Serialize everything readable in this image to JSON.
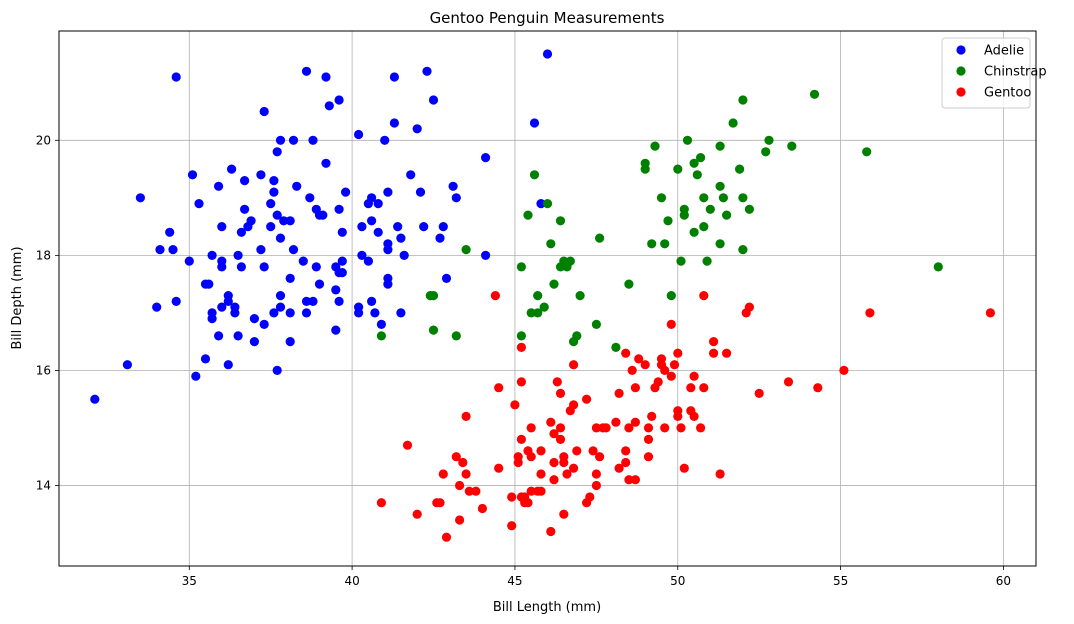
{
  "chart_data": {
    "type": "scatter",
    "title": "Gentoo Penguin Measurements",
    "xlabel": "Bill Length (mm)",
    "ylabel": "Bill Depth (mm)",
    "xlim": [
      31.0,
      61.0
    ],
    "ylim": [
      12.6,
      21.9
    ],
    "xticks": [
      35,
      40,
      45,
      50,
      55,
      60
    ],
    "yticks": [
      14,
      16,
      18,
      20
    ],
    "grid": true,
    "legend_position": "top-right",
    "series": [
      {
        "name": "Adelie",
        "color": "#0000ff",
        "points": [
          [
            32.1,
            15.5
          ],
          [
            33.1,
            16.1
          ],
          [
            33.5,
            19.0
          ],
          [
            34.0,
            17.1
          ],
          [
            34.1,
            18.1
          ],
          [
            34.4,
            18.4
          ],
          [
            34.5,
            18.1
          ],
          [
            34.6,
            21.1
          ],
          [
            34.6,
            17.2
          ],
          [
            35.0,
            17.9
          ],
          [
            35.1,
            19.4
          ],
          [
            35.2,
            15.9
          ],
          [
            35.3,
            18.9
          ],
          [
            35.5,
            16.2
          ],
          [
            35.5,
            17.5
          ],
          [
            35.6,
            17.5
          ],
          [
            35.7,
            16.9
          ],
          [
            35.7,
            17.0
          ],
          [
            35.7,
            18.0
          ],
          [
            35.9,
            19.2
          ],
          [
            35.9,
            16.6
          ],
          [
            36.0,
            17.1
          ],
          [
            36.0,
            17.8
          ],
          [
            36.0,
            18.5
          ],
          [
            36.0,
            17.9
          ],
          [
            36.2,
            16.1
          ],
          [
            36.2,
            17.2
          ],
          [
            36.2,
            17.3
          ],
          [
            36.3,
            19.5
          ],
          [
            36.4,
            17.0
          ],
          [
            36.4,
            17.1
          ],
          [
            36.5,
            16.6
          ],
          [
            36.5,
            18.0
          ],
          [
            36.6,
            17.8
          ],
          [
            36.6,
            18.4
          ],
          [
            36.7,
            19.3
          ],
          [
            36.7,
            18.8
          ],
          [
            36.8,
            18.5
          ],
          [
            36.9,
            18.6
          ],
          [
            37.0,
            16.9
          ],
          [
            37.0,
            16.5
          ],
          [
            37.2,
            18.1
          ],
          [
            37.2,
            19.4
          ],
          [
            37.3,
            20.5
          ],
          [
            37.3,
            17.8
          ],
          [
            37.3,
            16.8
          ],
          [
            37.5,
            18.9
          ],
          [
            37.5,
            18.5
          ],
          [
            37.6,
            19.1
          ],
          [
            37.6,
            17.0
          ],
          [
            37.6,
            19.3
          ],
          [
            37.7,
            18.7
          ],
          [
            37.7,
            16.0
          ],
          [
            37.7,
            19.8
          ],
          [
            37.8,
            18.3
          ],
          [
            37.8,
            17.1
          ],
          [
            37.8,
            17.3
          ],
          [
            37.8,
            20.0
          ],
          [
            37.9,
            18.6
          ],
          [
            38.1,
            18.6
          ],
          [
            38.1,
            17.6
          ],
          [
            38.1,
            16.5
          ],
          [
            38.1,
            17.0
          ],
          [
            38.2,
            20.0
          ],
          [
            38.2,
            18.1
          ],
          [
            38.3,
            19.2
          ],
          [
            38.5,
            17.9
          ],
          [
            38.6,
            21.2
          ],
          [
            38.6,
            17.2
          ],
          [
            38.6,
            17.0
          ],
          [
            38.7,
            19.0
          ],
          [
            38.8,
            17.2
          ],
          [
            38.8,
            20.0
          ],
          [
            38.9,
            18.8
          ],
          [
            38.9,
            17.8
          ],
          [
            39.0,
            18.7
          ],
          [
            39.0,
            17.5
          ],
          [
            39.1,
            18.7
          ],
          [
            39.2,
            19.6
          ],
          [
            39.2,
            21.1
          ],
          [
            39.3,
            20.6
          ],
          [
            39.5,
            16.7
          ],
          [
            39.5,
            17.4
          ],
          [
            39.5,
            17.8
          ],
          [
            39.6,
            17.7
          ],
          [
            39.6,
            20.7
          ],
          [
            39.6,
            18.8
          ],
          [
            39.6,
            17.2
          ],
          [
            39.7,
            18.4
          ],
          [
            39.7,
            17.9
          ],
          [
            39.7,
            17.7
          ],
          [
            39.8,
            19.1
          ],
          [
            40.2,
            17.0
          ],
          [
            40.2,
            17.1
          ],
          [
            40.2,
            20.1
          ],
          [
            40.3,
            18.0
          ],
          [
            40.3,
            18.5
          ],
          [
            40.5,
            17.9
          ],
          [
            40.5,
            18.9
          ],
          [
            40.6,
            17.2
          ],
          [
            40.6,
            18.6
          ],
          [
            40.6,
            19.0
          ],
          [
            40.7,
            17.0
          ],
          [
            40.8,
            18.4
          ],
          [
            40.8,
            18.9
          ],
          [
            40.9,
            16.8
          ],
          [
            41.0,
            20.0
          ],
          [
            41.1,
            17.6
          ],
          [
            41.1,
            17.5
          ],
          [
            41.1,
            18.2
          ],
          [
            41.1,
            18.1
          ],
          [
            41.1,
            19.1
          ],
          [
            41.3,
            20.3
          ],
          [
            41.3,
            21.1
          ],
          [
            41.4,
            18.5
          ],
          [
            41.5,
            18.3
          ],
          [
            41.5,
            17.0
          ],
          [
            41.6,
            18.0
          ],
          [
            41.8,
            19.4
          ],
          [
            42.0,
            20.2
          ],
          [
            42.1,
            19.1
          ],
          [
            42.2,
            18.5
          ],
          [
            42.3,
            21.2
          ],
          [
            42.5,
            20.7
          ],
          [
            42.7,
            18.3
          ],
          [
            42.8,
            18.5
          ],
          [
            42.9,
            17.6
          ],
          [
            43.1,
            19.2
          ],
          [
            43.2,
            19.0
          ],
          [
            44.1,
            19.7
          ],
          [
            44.1,
            18.0
          ],
          [
            45.6,
            20.3
          ],
          [
            45.8,
            18.9
          ],
          [
            46.0,
            21.5
          ]
        ]
      },
      {
        "name": "Chinstrap",
        "color": "#008000",
        "points": [
          [
            40.9,
            16.6
          ],
          [
            42.4,
            17.3
          ],
          [
            42.5,
            16.7
          ],
          [
            42.5,
            17.3
          ],
          [
            43.2,
            16.6
          ],
          [
            43.5,
            18.1
          ],
          [
            45.2,
            17.8
          ],
          [
            45.2,
            16.6
          ],
          [
            45.4,
            18.7
          ],
          [
            45.5,
            17.0
          ],
          [
            45.6,
            19.4
          ],
          [
            45.7,
            17.3
          ],
          [
            45.7,
            17.0
          ],
          [
            45.9,
            17.1
          ],
          [
            46.0,
            18.9
          ],
          [
            46.1,
            18.2
          ],
          [
            46.2,
            17.5
          ],
          [
            46.4,
            18.6
          ],
          [
            46.4,
            17.8
          ],
          [
            46.5,
            17.9
          ],
          [
            46.6,
            17.8
          ],
          [
            46.7,
            17.9
          ],
          [
            46.8,
            16.5
          ],
          [
            46.9,
            16.6
          ],
          [
            47.0,
            17.3
          ],
          [
            47.5,
            16.8
          ],
          [
            47.6,
            18.3
          ],
          [
            48.1,
            16.4
          ],
          [
            48.5,
            17.5
          ],
          [
            49.0,
            19.5
          ],
          [
            49.0,
            19.6
          ],
          [
            49.2,
            18.2
          ],
          [
            49.3,
            19.9
          ],
          [
            49.5,
            19.0
          ],
          [
            49.6,
            18.2
          ],
          [
            49.7,
            18.6
          ],
          [
            49.8,
            17.3
          ],
          [
            50.0,
            19.5
          ],
          [
            50.1,
            17.9
          ],
          [
            50.2,
            18.8
          ],
          [
            50.2,
            18.7
          ],
          [
            50.3,
            20.0
          ],
          [
            50.5,
            18.4
          ],
          [
            50.5,
            19.6
          ],
          [
            50.6,
            19.4
          ],
          [
            50.7,
            19.7
          ],
          [
            50.8,
            18.5
          ],
          [
            50.8,
            19.0
          ],
          [
            50.9,
            17.9
          ],
          [
            51.0,
            18.8
          ],
          [
            51.3,
            19.2
          ],
          [
            51.3,
            18.2
          ],
          [
            51.3,
            19.9
          ],
          [
            51.4,
            19.0
          ],
          [
            51.5,
            18.7
          ],
          [
            51.7,
            20.3
          ],
          [
            51.9,
            19.5
          ],
          [
            52.0,
            18.1
          ],
          [
            52.0,
            20.7
          ],
          [
            52.0,
            19.0
          ],
          [
            52.2,
            18.8
          ],
          [
            52.7,
            19.8
          ],
          [
            52.8,
            20.0
          ],
          [
            53.5,
            19.9
          ],
          [
            54.2,
            20.8
          ],
          [
            55.8,
            19.8
          ],
          [
            58.0,
            17.8
          ]
        ]
      },
      {
        "name": "Gentoo",
        "color": "#ff0000",
        "points": [
          [
            40.9,
            13.7
          ],
          [
            41.7,
            14.7
          ],
          [
            42.0,
            13.5
          ],
          [
            42.6,
            13.7
          ],
          [
            42.7,
            13.7
          ],
          [
            42.8,
            14.2
          ],
          [
            42.9,
            13.1
          ],
          [
            43.2,
            14.5
          ],
          [
            43.3,
            14.0
          ],
          [
            43.3,
            13.4
          ],
          [
            43.4,
            14.4
          ],
          [
            43.5,
            14.2
          ],
          [
            43.5,
            15.2
          ],
          [
            43.6,
            13.9
          ],
          [
            43.8,
            13.9
          ],
          [
            44.0,
            13.6
          ],
          [
            44.4,
            17.3
          ],
          [
            44.5,
            14.3
          ],
          [
            44.5,
            15.7
          ],
          [
            44.9,
            13.3
          ],
          [
            44.9,
            13.8
          ],
          [
            45.0,
            15.4
          ],
          [
            45.1,
            14.5
          ],
          [
            45.1,
            14.4
          ],
          [
            45.2,
            16.4
          ],
          [
            45.2,
            15.8
          ],
          [
            45.2,
            13.8
          ],
          [
            45.2,
            14.8
          ],
          [
            45.3,
            13.7
          ],
          [
            45.3,
            13.8
          ],
          [
            45.4,
            14.6
          ],
          [
            45.4,
            13.7
          ],
          [
            45.5,
            13.9
          ],
          [
            45.5,
            14.5
          ],
          [
            45.5,
            15.0
          ],
          [
            45.7,
            13.9
          ],
          [
            45.8,
            14.2
          ],
          [
            45.8,
            13.9
          ],
          [
            45.8,
            14.6
          ],
          [
            46.1,
            13.2
          ],
          [
            46.1,
            15.1
          ],
          [
            46.2,
            14.4
          ],
          [
            46.2,
            14.1
          ],
          [
            46.2,
            14.9
          ],
          [
            46.3,
            15.8
          ],
          [
            46.4,
            14.8
          ],
          [
            46.4,
            15.0
          ],
          [
            46.4,
            15.6
          ],
          [
            46.5,
            14.4
          ],
          [
            46.5,
            14.5
          ],
          [
            46.5,
            13.5
          ],
          [
            46.6,
            14.2
          ],
          [
            46.7,
            15.3
          ],
          [
            46.8,
            15.4
          ],
          [
            46.8,
            14.3
          ],
          [
            46.8,
            16.1
          ],
          [
            46.9,
            14.6
          ],
          [
            47.2,
            13.7
          ],
          [
            47.2,
            15.5
          ],
          [
            47.3,
            13.8
          ],
          [
            47.4,
            14.6
          ],
          [
            47.5,
            14.0
          ],
          [
            47.5,
            15.0
          ],
          [
            47.5,
            14.2
          ],
          [
            47.6,
            14.5
          ],
          [
            47.7,
            15.0
          ],
          [
            47.8,
            15.0
          ],
          [
            48.1,
            15.1
          ],
          [
            48.2,
            14.3
          ],
          [
            48.2,
            15.6
          ],
          [
            48.4,
            14.4
          ],
          [
            48.4,
            16.3
          ],
          [
            48.4,
            14.6
          ],
          [
            48.5,
            14.1
          ],
          [
            48.5,
            15.0
          ],
          [
            48.6,
            16.0
          ],
          [
            48.7,
            14.1
          ],
          [
            48.7,
            15.7
          ],
          [
            48.7,
            15.1
          ],
          [
            48.8,
            16.2
          ],
          [
            49.0,
            16.1
          ],
          [
            49.1,
            14.5
          ],
          [
            49.1,
            15.0
          ],
          [
            49.1,
            14.8
          ],
          [
            49.2,
            15.2
          ],
          [
            49.3,
            15.7
          ],
          [
            49.4,
            15.8
          ],
          [
            49.5,
            16.2
          ],
          [
            49.5,
            16.1
          ],
          [
            49.6,
            15.0
          ],
          [
            49.6,
            16.0
          ],
          [
            49.8,
            16.8
          ],
          [
            49.8,
            15.9
          ],
          [
            49.9,
            16.1
          ],
          [
            50.0,
            15.2
          ],
          [
            50.0,
            15.3
          ],
          [
            50.0,
            16.3
          ],
          [
            50.1,
            15.0
          ],
          [
            50.2,
            14.3
          ],
          [
            50.4,
            15.3
          ],
          [
            50.4,
            15.7
          ],
          [
            50.5,
            15.2
          ],
          [
            50.5,
            15.9
          ],
          [
            50.7,
            15.0
          ],
          [
            50.8,
            17.3
          ],
          [
            50.8,
            15.7
          ],
          [
            51.1,
            16.3
          ],
          [
            51.1,
            16.5
          ],
          [
            51.3,
            14.2
          ],
          [
            51.5,
            16.3
          ],
          [
            52.1,
            17.0
          ],
          [
            52.2,
            17.1
          ],
          [
            52.5,
            15.6
          ],
          [
            53.4,
            15.8
          ],
          [
            54.3,
            15.7
          ],
          [
            55.1,
            16.0
          ],
          [
            55.9,
            17.0
          ],
          [
            59.6,
            17.0
          ]
        ]
      }
    ]
  }
}
